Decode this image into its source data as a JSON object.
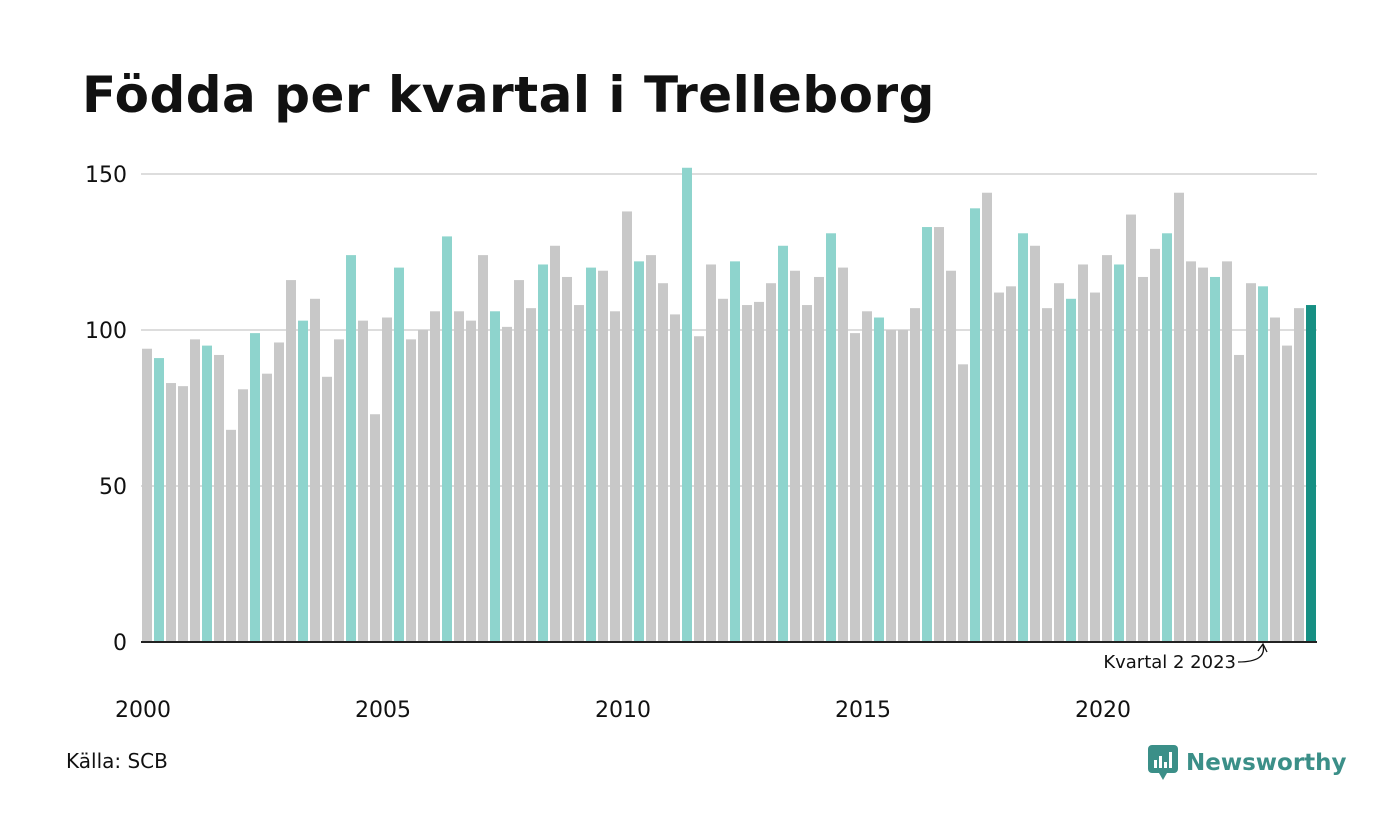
{
  "chart_data": {
    "type": "bar",
    "title": "Födda per kvartal i Trelleborg",
    "xlabel": "",
    "ylabel": "",
    "ylim": [
      0,
      155
    ],
    "yticks": [
      0,
      50,
      100,
      150
    ],
    "grid": true,
    "x_tick_labels": [
      "2000",
      "2005",
      "2010",
      "2015",
      "2020"
    ],
    "start_year": 2000,
    "quarters_per_year": 4,
    "highlight_quarter": 2,
    "colors": {
      "other": "#c8c8c8",
      "highlight_quarter": "#8ed4cd",
      "latest": "#168f83",
      "grid": "#dddddd",
      "axis": "#222222"
    },
    "values": [
      94,
      91,
      83,
      82,
      97,
      95,
      92,
      68,
      81,
      99,
      86,
      96,
      116,
      103,
      110,
      85,
      97,
      124,
      103,
      73,
      104,
      120,
      97,
      100,
      106,
      130,
      106,
      103,
      124,
      106,
      101,
      116,
      107,
      121,
      127,
      117,
      108,
      120,
      119,
      106,
      138,
      122,
      124,
      115,
      105,
      152,
      98,
      121,
      110,
      122,
      108,
      109,
      115,
      127,
      119,
      108,
      117,
      131,
      120,
      99,
      106,
      104,
      100,
      100,
      107,
      133,
      133,
      119,
      89,
      139,
      144,
      112,
      114,
      131,
      127,
      107,
      115,
      110,
      121,
      112,
      124,
      121,
      137,
      117,
      126,
      131,
      144,
      122,
      120,
      117,
      122,
      92,
      115,
      114,
      104,
      95,
      107,
      108
    ],
    "annotation": "Kvartal 2 2023"
  },
  "source": "Källa: SCB",
  "brand": {
    "name": "Newsworthy",
    "icon": "newsworthy-logo-icon",
    "color": "#3b8f88"
  }
}
